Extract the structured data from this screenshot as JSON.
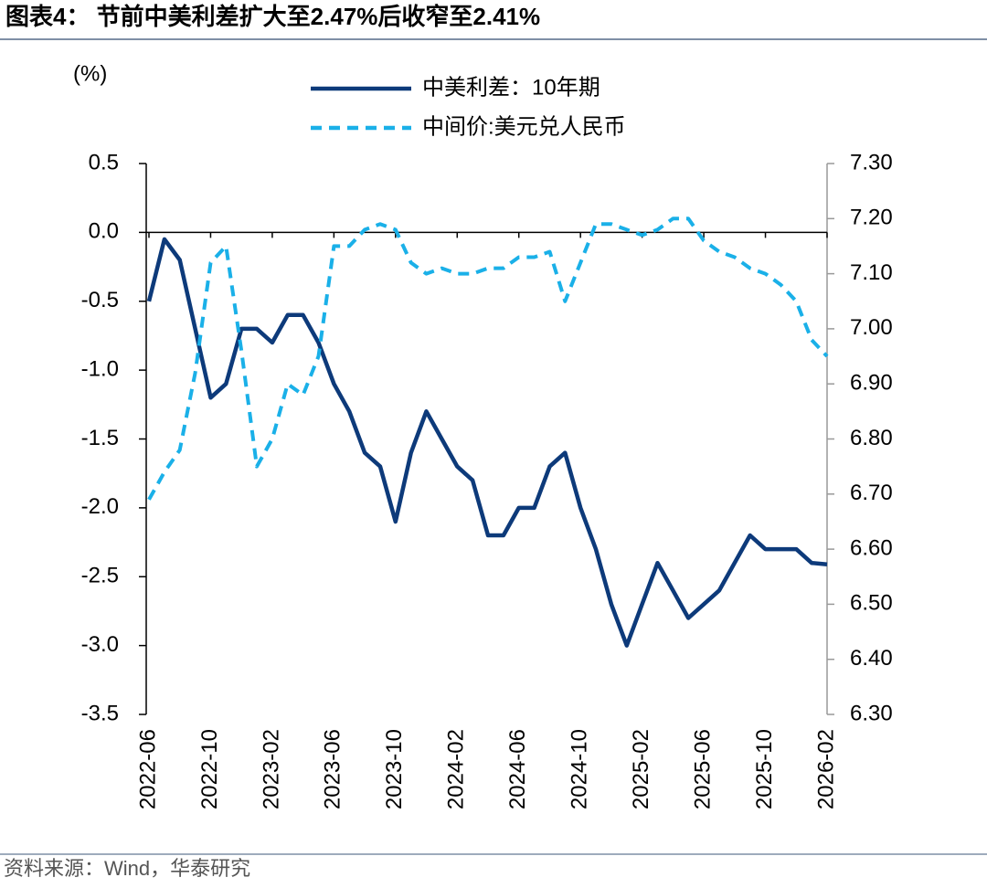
{
  "chart_data": {
    "type": "line",
    "title": "图表4：  节前中美利差扩大至2.47%后收窄至2.41%",
    "y_label": "(%)",
    "source": "资料来源：Wind，华泰研究",
    "x": [
      "2022-06",
      "2022-07",
      "2022-08",
      "2022-09",
      "2022-10",
      "2022-11",
      "2022-12",
      "2023-01",
      "2023-02",
      "2023-03",
      "2023-04",
      "2023-05",
      "2023-06",
      "2023-07",
      "2023-08",
      "2023-09",
      "2023-10",
      "2023-11",
      "2023-12",
      "2024-01",
      "2024-02",
      "2024-03",
      "2024-04",
      "2024-05",
      "2024-06",
      "2024-07",
      "2024-08",
      "2024-09",
      "2024-10",
      "2024-11",
      "2024-12",
      "2025-01",
      "2025-02",
      "2025-03",
      "2025-04",
      "2025-05",
      "2025-06",
      "2025-07",
      "2025-08",
      "2025-09",
      "2025-10",
      "2025-11",
      "2025-12",
      "2026-01",
      "2026-02"
    ],
    "xlim": [
      "2022-06",
      "2026-02"
    ],
    "xticks": [
      "2022-06",
      "2022-10",
      "2023-02",
      "2023-06",
      "2023-10",
      "2024-02",
      "2024-06",
      "2024-10",
      "2025-02",
      "2025-06",
      "2025-10",
      "2026-02"
    ],
    "series": [
      {
        "name": "中美利差：10年期",
        "color": "#0d3a7a",
        "dash": false,
        "axis": "y",
        "values": [
          -0.5,
          -0.05,
          -0.2,
          -0.7,
          -1.2,
          -1.1,
          -0.7,
          -0.7,
          -0.8,
          -0.6,
          -0.6,
          -0.8,
          -1.1,
          -1.3,
          -1.6,
          -1.7,
          -2.1,
          -1.6,
          -1.3,
          -1.5,
          -1.7,
          -1.8,
          -2.2,
          -2.2,
          -2.0,
          -2.0,
          -1.7,
          -1.6,
          -2.0,
          -2.3,
          -2.7,
          -3.0,
          -2.7,
          -2.4,
          -2.6,
          -2.8,
          -2.7,
          -2.6,
          -2.4,
          -2.2,
          -2.3,
          -2.3,
          -2.3,
          -2.4,
          -2.41
        ]
      },
      {
        "name": "中间价:美元兑人民币",
        "color": "#1ab0e8",
        "dash": true,
        "axis": "y2",
        "values": [
          6.69,
          6.74,
          6.78,
          6.92,
          7.12,
          7.15,
          6.96,
          6.75,
          6.8,
          6.9,
          6.88,
          6.95,
          7.15,
          7.15,
          7.18,
          7.19,
          7.18,
          7.12,
          7.1,
          7.11,
          7.1,
          7.1,
          7.11,
          7.11,
          7.13,
          7.13,
          7.14,
          7.05,
          7.12,
          7.19,
          7.19,
          7.18,
          7.17,
          7.18,
          7.2,
          7.2,
          7.16,
          7.14,
          7.13,
          7.11,
          7.1,
          7.08,
          7.05,
          6.98,
          6.95
        ]
      }
    ],
    "ylim": [
      -3.5,
      0.5
    ],
    "yticks": [
      0.5,
      {
        "value": 0,
        "label": "0.0"
      },
      -0.5,
      {
        "value": -1,
        "label": "-1.0"
      },
      -1.5,
      {
        "value": -2,
        "label": "-2.0"
      },
      -2.5,
      {
        "value": -3,
        "label": "-3.0"
      },
      -3.5
    ],
    "y2lim": [
      6.3,
      7.3
    ],
    "y2ticks": [
      {
        "value": 7.3,
        "label": "7.30"
      },
      {
        "value": 7.2,
        "label": "7.20"
      },
      {
        "value": 7.1,
        "label": "7.10"
      },
      {
        "value": 7.0,
        "label": "7.00"
      },
      {
        "value": 6.9,
        "label": "6.90"
      },
      {
        "value": 6.8,
        "label": "6.80"
      },
      {
        "value": 6.7,
        "label": "6.70"
      },
      {
        "value": 6.6,
        "label": "6.60"
      },
      {
        "value": 6.5,
        "label": "6.50"
      },
      {
        "value": 6.4,
        "label": "6.40"
      },
      {
        "value": 6.3,
        "label": "6.30"
      }
    ],
    "legend": "top"
  }
}
